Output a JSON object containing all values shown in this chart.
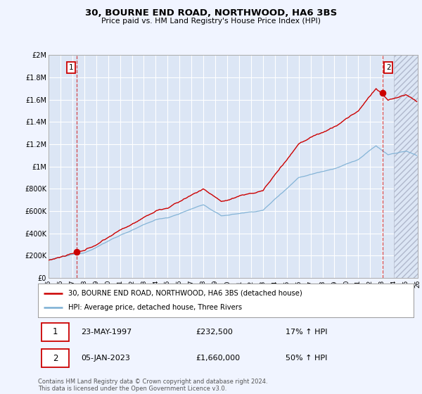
{
  "title": "30, BOURNE END ROAD, NORTHWOOD, HA6 3BS",
  "subtitle": "Price paid vs. HM Land Registry's House Price Index (HPI)",
  "red_label": "30, BOURNE END ROAD, NORTHWOOD, HA6 3BS (detached house)",
  "blue_label": "HPI: Average price, detached house, Three Rivers",
  "transaction1": {
    "num": "1",
    "date": "23-MAY-1997",
    "price": "£232,500",
    "hpi": "17% ↑ HPI",
    "year": 1997.38
  },
  "transaction2": {
    "num": "2",
    "date": "05-JAN-2023",
    "price": "£1,660,000",
    "hpi": "50% ↑ HPI",
    "year": 2023.03
  },
  "sale1_price": 232500,
  "sale2_price": 1660000,
  "footer": "Contains HM Land Registry data © Crown copyright and database right 2024.\nThis data is licensed under the Open Government Licence v3.0.",
  "xlim": [
    1995,
    2026
  ],
  "ylim": [
    0,
    2000000
  ],
  "yticks": [
    0,
    200000,
    400000,
    600000,
    800000,
    1000000,
    1200000,
    1400000,
    1600000,
    1800000,
    2000000
  ],
  "ytick_labels": [
    "£0",
    "£200K",
    "£400K",
    "£600K",
    "£800K",
    "£1M",
    "£1.2M",
    "£1.4M",
    "£1.6M",
    "£1.8M",
    "£2M"
  ],
  "xticks": [
    1995,
    1996,
    1997,
    1998,
    1999,
    2000,
    2001,
    2002,
    2003,
    2004,
    2005,
    2006,
    2007,
    2008,
    2009,
    2010,
    2011,
    2012,
    2013,
    2014,
    2015,
    2016,
    2017,
    2018,
    2019,
    2020,
    2021,
    2022,
    2023,
    2024,
    2025,
    2026
  ],
  "background_color": "#f0f4ff",
  "plot_bg": "#dce6f5",
  "grid_color": "#ffffff",
  "red_color": "#cc0000",
  "blue_color": "#7bafd4"
}
